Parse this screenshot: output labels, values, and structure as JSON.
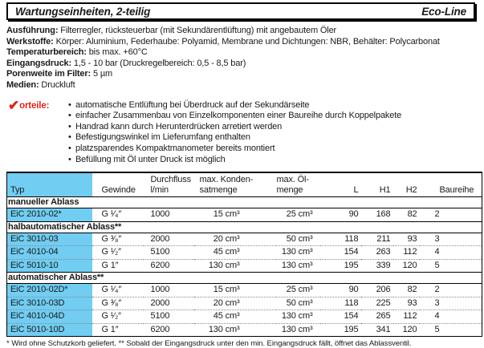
{
  "colors": {
    "accent_blue": "#71CDF2",
    "accent_red": "#D9261C"
  },
  "header": {
    "title": "Wartungseinheiten, 2-teilig",
    "brand": "Eco-Line"
  },
  "specs": [
    {
      "label": "Ausführung:",
      "value": " Filterregler, rücksteuerbar (mit Sekundärentlüftung) mit angebautem Öler"
    },
    {
      "label": "Werkstoffe:",
      "value": " Körper: Aluminium, Federhaube: Polyamid, Membrane und Dichtungen: NBR, Behälter: Polycarbonat"
    },
    {
      "label": "Temperaturbereich:",
      "value": " bis max. +60°C"
    },
    {
      "label": "Eingangsdruck:",
      "value": " 1,5 - 10 bar (Druckregelbereich: 0,5 - 8,5 bar)"
    },
    {
      "label": "Porenweite im Filter:",
      "value": " 5 µm"
    },
    {
      "label": "Medien:",
      "value": " Druckluft"
    }
  ],
  "vorteile": {
    "check_icon": "✔",
    "label": "orteile:",
    "bullet": "•",
    "items": [
      "automatische Entlüftung bei Überdruck auf der Sekundärseite",
      "einfacher Zusammenbau von Einzelkomponenten einer Baureihe durch Koppelpakete",
      "Handrad kann durch Herunterdrücken arretiert werden",
      "Befestigungswinkel im Lieferumfang enthalten",
      "platzsparendes Kompaktmanometer bereits montiert",
      "Befüllung mit Öl unter Druck ist möglich"
    ]
  },
  "table": {
    "columns": [
      {
        "lines": [
          "Typ"
        ]
      },
      {
        "lines": [
          "Gewinde"
        ]
      },
      {
        "lines": [
          "Durchfluss",
          "l/min"
        ]
      },
      {
        "lines": [
          "max. Konden-",
          "satmenge"
        ]
      },
      {
        "lines": [
          "max. Öl-",
          "menge"
        ]
      },
      {
        "lines": [
          "L"
        ]
      },
      {
        "lines": [
          "H1"
        ]
      },
      {
        "lines": [
          "H2"
        ]
      },
      {
        "lines": [
          "Baureihe"
        ]
      }
    ],
    "sections": [
      {
        "title": "manueller Ablass",
        "rows": [
          [
            "EiC 2010-02*",
            "G ¹⁄₄″",
            "1000",
            "15 cm³",
            "25 cm³",
            "90",
            "168",
            "82",
            "2"
          ]
        ]
      },
      {
        "title": "halbautomatischer Ablass**",
        "rows": [
          [
            "EiC 3010-03",
            "G ³⁄₈″",
            "2000",
            "20 cm³",
            "50 cm³",
            "118",
            "211",
            "93",
            "3"
          ],
          [
            "EiC 4010-04",
            "G ¹⁄₂″",
            "5100",
            "45 cm³",
            "130 cm³",
            "154",
            "263",
            "112",
            "4"
          ],
          [
            "EiC 5010-10",
            "G 1″",
            "6200",
            "130 cm³",
            "130 cm³",
            "195",
            "339",
            "120",
            "5"
          ]
        ]
      },
      {
        "title": "automatischer Ablass**",
        "rows": [
          [
            "EiC 2010-02D*",
            "G ¹⁄₄″",
            "1000",
            "15 cm³",
            "25 cm³",
            "90",
            "206",
            "82",
            "2"
          ],
          [
            "EiC 3010-03D",
            "G ³⁄₈″",
            "2000",
            "20 cm³",
            "50 cm³",
            "118",
            "225",
            "93",
            "3"
          ],
          [
            "EiC 4010-04D",
            "G ¹⁄₂″",
            "5100",
            "45 cm³",
            "130 cm³",
            "154",
            "265",
            "112",
            "4"
          ],
          [
            "EiC 5010-10D",
            "G 1″",
            "6200",
            "130 cm³",
            "130 cm³",
            "195",
            "341",
            "120",
            "5"
          ]
        ]
      }
    ],
    "footnote": "* Wird ohne Schutzkorb geliefert. ** Sobald der Eingangsdruck unter den min. Eingangsdruck fällt, öffnet das Ablassventil."
  }
}
